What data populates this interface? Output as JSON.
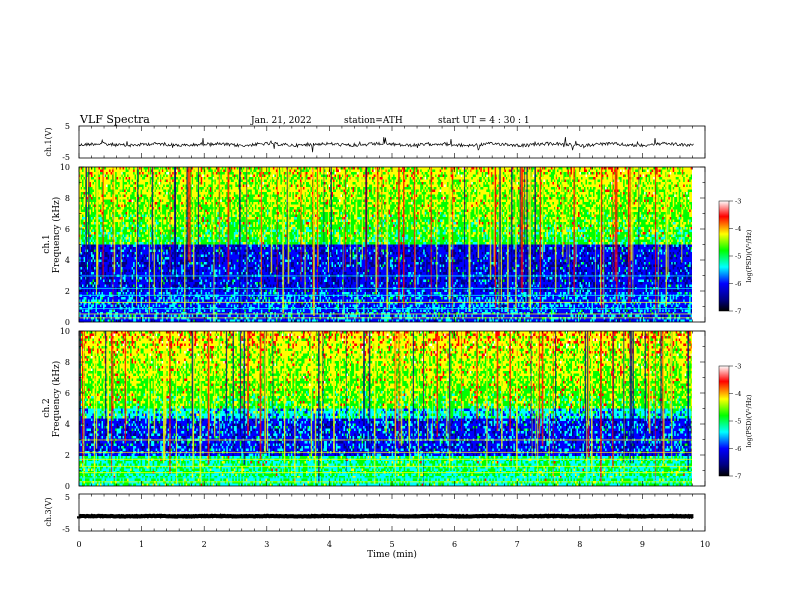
{
  "header": {
    "title": "VLF  Spectra",
    "date": "Jan. 21, 2022",
    "station": "station=ATH",
    "start": "start  UT  =   4  : 30 : 1"
  },
  "chart_data": [
    {
      "type": "line",
      "panel": "ch1-waveform",
      "ylabel": "ch.1(V)",
      "ylim": [
        -5,
        5
      ],
      "yticks": [
        "5",
        "-5"
      ],
      "xlim": [
        0,
        10
      ],
      "baseline": -0.8,
      "data_extent_min": 9.82,
      "series_color": "#000000"
    },
    {
      "type": "heatmap",
      "panel": "ch1-spectrogram",
      "ylabel_line1": "ch.1",
      "ylabel_line2": "Frequency (kHz)",
      "ylim": [
        0,
        10
      ],
      "yticks": [
        "0",
        "2",
        "4",
        "6",
        "8",
        "10"
      ],
      "xlim": [
        0,
        10
      ],
      "data_extent_min": 9.82,
      "colorbar": {
        "label": "log(PSD)(V²/Hz)",
        "range": [
          -7,
          -3
        ],
        "ticks": [
          "-3",
          "-4",
          "-5",
          "-6",
          "-7"
        ],
        "colors": [
          "#ffffff",
          "#ff0000",
          "#ffff00",
          "#00ff00",
          "#00ffff",
          "#0000ff",
          "#000080",
          "#000000"
        ]
      }
    },
    {
      "type": "heatmap",
      "panel": "ch2-spectrogram",
      "ylabel_line1": "ch.2",
      "ylabel_line2": "Frequency (kHz)",
      "ylim": [
        0,
        10
      ],
      "yticks": [
        "0",
        "2",
        "4",
        "6",
        "8",
        "10"
      ],
      "xlim": [
        0,
        10
      ],
      "data_extent_min": 9.82,
      "colorbar": {
        "label": "log(PSD)(V²/Hz)",
        "range": [
          -7,
          -3
        ],
        "ticks": [
          "-3",
          "-4",
          "-5",
          "-6",
          "-7"
        ],
        "colors": [
          "#ffffff",
          "#ff0000",
          "#ffff00",
          "#00ff00",
          "#00ffff",
          "#0000ff",
          "#000080",
          "#000000"
        ]
      }
    },
    {
      "type": "line",
      "panel": "ch3-waveform",
      "ylabel": "ch.3(V)",
      "ylim": [
        -5,
        5
      ],
      "yticks": [
        "5",
        "-5"
      ],
      "xlim": [
        0,
        10
      ],
      "baseline": -1.0,
      "data_extent_min": 9.82,
      "series_color": "#000000"
    }
  ],
  "xaxis": {
    "label": "Time (min)",
    "ticks": [
      "0",
      "1",
      "2",
      "3",
      "4",
      "5",
      "6",
      "7",
      "8",
      "9",
      "10"
    ]
  }
}
